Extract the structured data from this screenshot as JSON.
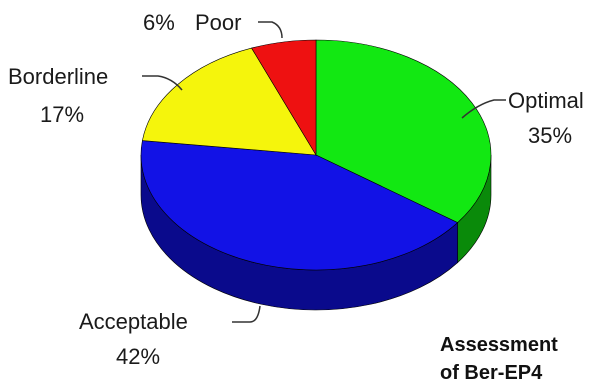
{
  "chart_data": {
    "type": "pie",
    "categories": [
      "Optimal",
      "Acceptable",
      "Borderline",
      "Poor"
    ],
    "values": [
      35,
      42,
      17,
      6
    ],
    "value_labels": [
      "35%",
      "42%",
      "17%",
      "6%"
    ],
    "colors": [
      "#12e812",
      "#1212e6",
      "#f5f50c",
      "#ee1111"
    ],
    "side_colors": [
      "#0a8a0a",
      "#0a0a8c",
      "#8a8a06",
      "#8a0808"
    ],
    "three_d": true,
    "grid": false,
    "legend": "none",
    "annotation": [
      "Assessment",
      "of Ber-EP4"
    ]
  }
}
